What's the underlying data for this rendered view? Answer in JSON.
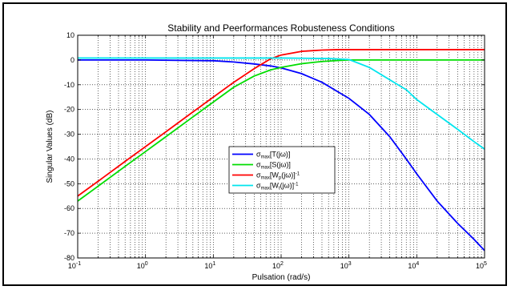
{
  "chart_data": {
    "type": "line",
    "title": "Stability and Peerformances Robusteness Conditions",
    "xlabel": "Pulsation (rad/s)",
    "ylabel": "Singular Values (dB)",
    "xscale": "log",
    "xlim": [
      0.1,
      100000
    ],
    "ylim": [
      -80,
      10
    ],
    "grid": "on (major solid-dotted, minor dotted)",
    "legend_position": "center-left",
    "x_tick_labels": [
      {
        "base": "10",
        "exp": "-1"
      },
      {
        "base": "10",
        "exp": "0"
      },
      {
        "base": "10",
        "exp": "1"
      },
      {
        "base": "10",
        "exp": "2"
      },
      {
        "base": "10",
        "exp": "3"
      },
      {
        "base": "10",
        "exp": "4"
      },
      {
        "base": "10",
        "exp": "5"
      }
    ],
    "y_tick_labels": [
      "10",
      "0",
      "-10",
      "-20",
      "-30",
      "-40",
      "-50",
      "-60",
      "-70",
      "-80"
    ],
    "series": [
      {
        "name": "σmax[T(jω)]",
        "legend": {
          "sym": "σ",
          "sub": "max",
          "rest": "[T(jω)]",
          "sup": ""
        },
        "color": "#0000ff",
        "x": [
          0.1,
          1,
          10,
          20,
          40,
          70,
          100,
          200,
          400,
          700,
          1000,
          2000,
          4000,
          7000,
          10000,
          20000,
          40000,
          70000,
          100000
        ],
        "y": [
          0,
          0,
          -0.3,
          -0.8,
          -1.6,
          -2.4,
          -3.2,
          -5.5,
          -9,
          -13,
          -15.5,
          -22,
          -31,
          -40,
          -46,
          -57,
          -66,
          -72.5,
          -77
        ]
      },
      {
        "name": "σmax[S(jω)]",
        "legend": {
          "sym": "σ",
          "sub": "max",
          "rest": "[S(jω)]",
          "sup": ""
        },
        "color": "#00dd00",
        "x": [
          0.1,
          0.2,
          0.5,
          1,
          2,
          5,
          10,
          20,
          40,
          70,
          100,
          200,
          400,
          700,
          1000,
          10000,
          100000
        ],
        "y": [
          -57,
          -51,
          -43,
          -37,
          -31,
          -23,
          -17,
          -11,
          -6.5,
          -4,
          -3,
          -1.5,
          -0.6,
          -0.2,
          0,
          0,
          0
        ]
      },
      {
        "name": "σmax[Wp(jω)]-1",
        "legend": {
          "sym": "σ",
          "sub": "max",
          "rest": "[W",
          "rest_sub": "p",
          "rest2": "(jω)]",
          "sup": "-1"
        },
        "color": "#ff0000",
        "x": [
          0.1,
          0.2,
          0.5,
          1,
          2,
          5,
          10,
          20,
          40,
          70,
          100,
          200,
          400,
          700,
          1000,
          10000,
          100000
        ],
        "y": [
          -55,
          -49,
          -41,
          -35,
          -29,
          -21,
          -15,
          -9,
          -3.5,
          0.5,
          2,
          3.5,
          4,
          4.2,
          4.2,
          4.2,
          4.2
        ]
      },
      {
        "name": "σmax[Wt(jω)]-1",
        "legend": {
          "sym": "σ",
          "sub": "max",
          "rest": "[W",
          "rest_sub": "t",
          "rest2": "(jω)]",
          "sup": "-1"
        },
        "color": "#00e5ee",
        "x": [
          0.1,
          1,
          10,
          100,
          500,
          1000,
          2000,
          4000,
          7000,
          10000,
          20000,
          40000,
          70000,
          100000
        ],
        "y": [
          0.8,
          0.8,
          0.8,
          0.8,
          0.6,
          0.2,
          -3,
          -8,
          -12,
          -16,
          -22,
          -28,
          -33,
          -36
        ]
      }
    ]
  }
}
